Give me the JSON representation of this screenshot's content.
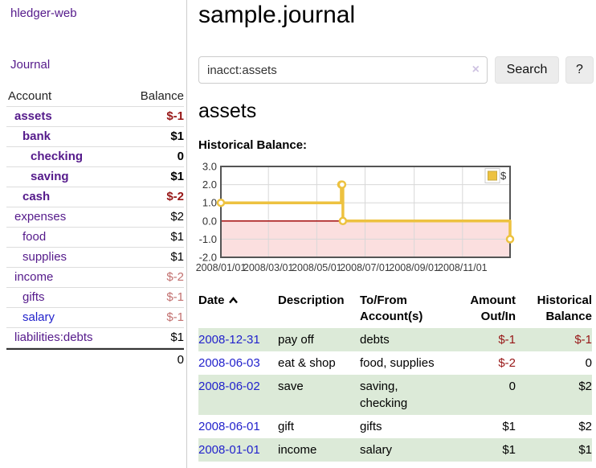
{
  "app": {
    "brand": "hledger-web",
    "title": "sample.journal"
  },
  "nav": {
    "journal": "Journal"
  },
  "colors": {
    "purple": "#551a8b",
    "blue": "#2222cc",
    "negative": "#971616",
    "dimNegative": "#c2706f",
    "rowGreen": "#dcead8",
    "chartYellow": "#edc240",
    "chartPink": "#fbdfdf",
    "zeroLine": "#aa1c1c"
  },
  "sidebar": {
    "header": {
      "account": "Account",
      "balance": "Balance"
    },
    "accounts": [
      {
        "name": "assets",
        "indent": 1,
        "bold": true,
        "balance": "$-1",
        "balance_color": "negative"
      },
      {
        "name": "bank",
        "indent": 2,
        "bold": true,
        "balance": "$1",
        "balance_color": "normal"
      },
      {
        "name": "checking",
        "indent": 3,
        "bold": true,
        "balance": "0",
        "balance_color": "normal"
      },
      {
        "name": "saving",
        "indent": 3,
        "bold": true,
        "balance": "$1",
        "balance_color": "normal"
      },
      {
        "name": "cash",
        "indent": 2,
        "bold": true,
        "balance": "$-2",
        "balance_color": "negative"
      },
      {
        "name": "expenses",
        "indent": 1,
        "bold": false,
        "balance": "$2",
        "balance_color": "normal"
      },
      {
        "name": "food",
        "indent": 2,
        "bold": false,
        "balance": "$1",
        "balance_color": "normal"
      },
      {
        "name": "supplies",
        "indent": 2,
        "bold": false,
        "balance": "$1",
        "balance_color": "normal"
      },
      {
        "name": "income",
        "indent": 1,
        "bold": false,
        "balance": "$-2",
        "balance_color": "dim-negative"
      },
      {
        "name": "gifts",
        "indent": 2,
        "bold": false,
        "balance": "$-1",
        "balance_color": "dim-negative"
      },
      {
        "name": "salary",
        "indent": 2,
        "bold": false,
        "balance": "$-1",
        "balance_color": "dim-negative",
        "link_color": "blue"
      },
      {
        "name": "liabilities:debts",
        "indent": 1,
        "bold": false,
        "balance": "$1",
        "balance_color": "normal"
      }
    ],
    "total": "0"
  },
  "search": {
    "value": "inacct:assets",
    "clear_label": "×",
    "button": "Search",
    "help_button": "?"
  },
  "account_page": {
    "heading": "assets",
    "chart_label": "Historical Balance:"
  },
  "chart_data": {
    "type": "step-line",
    "title": "Historical Balance",
    "series": [
      {
        "name": "$",
        "color": "#edc240",
        "points": [
          [
            "2008-01-01",
            1
          ],
          [
            "2008-06-01",
            2
          ],
          [
            "2008-06-02",
            2
          ],
          [
            "2008-06-03",
            0
          ],
          [
            "2008-12-31",
            -1
          ]
        ]
      }
    ],
    "xlim": [
      "2008-01-01",
      "2008-12-31"
    ],
    "ylim": [
      -2,
      3
    ],
    "x_ticks": [
      "2008/01/01",
      "2008/03/01",
      "2008/05/01",
      "2008/07/01",
      "2008/09/01",
      "2008/11/01"
    ],
    "y_ticks": [
      "3.0",
      "2.0",
      "1.0",
      "0.0",
      "-1.0",
      "-2.0"
    ],
    "legend": {
      "label": "$",
      "position": "top-right"
    },
    "negative_region_shaded": true,
    "grid": true
  },
  "register": {
    "header": {
      "date": "Date",
      "description": "Description",
      "accounts": "To/From Account(s)",
      "amount": "Amount Out/In",
      "balance": "Historical Balance"
    },
    "rows": [
      {
        "date": "2008-12-31",
        "description": "pay off",
        "accounts": "debts",
        "amount": "$-1",
        "amount_neg": true,
        "balance": "$-1",
        "balance_neg": true
      },
      {
        "date": "2008-06-03",
        "description": "eat & shop",
        "accounts": "food, supplies",
        "amount": "$-2",
        "amount_neg": true,
        "balance": "0",
        "balance_neg": false
      },
      {
        "date": "2008-06-02",
        "description": "save",
        "accounts": "saving, checking",
        "amount": "0",
        "amount_neg": false,
        "balance": "$2",
        "balance_neg": false
      },
      {
        "date": "2008-06-01",
        "description": "gift",
        "accounts": "gifts",
        "amount": "$1",
        "amount_neg": false,
        "balance": "$2",
        "balance_neg": false
      },
      {
        "date": "2008-01-01",
        "description": "income",
        "accounts": "salary",
        "amount": "$1",
        "amount_neg": false,
        "balance": "$1",
        "balance_neg": false
      }
    ]
  }
}
